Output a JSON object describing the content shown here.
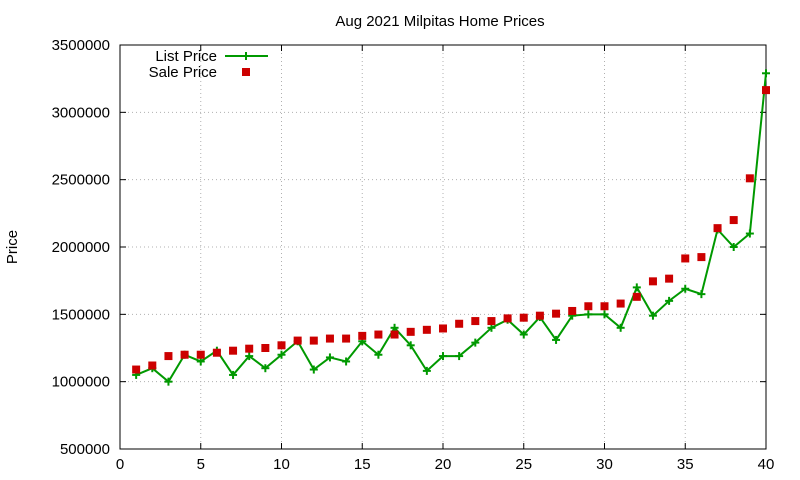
{
  "chart_data": {
    "type": "line",
    "title": "Aug 2021 Milpitas Home Prices",
    "xlabel": "",
    "ylabel": "Price",
    "xlim": [
      0,
      40
    ],
    "ylim": [
      500000,
      3500000
    ],
    "xticks": [
      0,
      5,
      10,
      15,
      20,
      25,
      30,
      35,
      40
    ],
    "yticks": [
      500000,
      1000000,
      1500000,
      2000000,
      2500000,
      3000000,
      3500000
    ],
    "grid": true,
    "legend_position": "top-left",
    "x": [
      1,
      2,
      3,
      4,
      5,
      6,
      7,
      8,
      9,
      10,
      11,
      12,
      13,
      14,
      15,
      16,
      17,
      18,
      19,
      20,
      21,
      22,
      23,
      24,
      25,
      26,
      27,
      28,
      29,
      30,
      31,
      32,
      33,
      34,
      35,
      36,
      37,
      38,
      39,
      40
    ],
    "series": [
      {
        "name": "List Price",
        "style": "linespoints",
        "marker": "plus",
        "color": "#009900",
        "values": [
          1050000,
          1100000,
          1000000,
          1200000,
          1150000,
          1230000,
          1050000,
          1190000,
          1100000,
          1200000,
          1300000,
          1090000,
          1180000,
          1150000,
          1300000,
          1200000,
          1400000,
          1270000,
          1080000,
          1190000,
          1190000,
          1290000,
          1400000,
          1460000,
          1350000,
          1480000,
          1310000,
          1490000,
          1500000,
          1500000,
          1400000,
          1700000,
          1490000,
          1600000,
          1690000,
          1650000,
          2130000,
          2000000,
          2100000,
          3290000
        ]
      },
      {
        "name": "Sale Price",
        "style": "points",
        "marker": "square",
        "color": "#cc0000",
        "values": [
          1090000,
          1120000,
          1190000,
          1200000,
          1200000,
          1215000,
          1230000,
          1245000,
          1250000,
          1270000,
          1305000,
          1305000,
          1320000,
          1320000,
          1340000,
          1350000,
          1350000,
          1370000,
          1385000,
          1395000,
          1430000,
          1450000,
          1450000,
          1470000,
          1475000,
          1490000,
          1505000,
          1525000,
          1560000,
          1560000,
          1580000,
          1630000,
          1745000,
          1765000,
          1915000,
          1925000,
          2140000,
          2200000,
          2510000,
          3165000
        ]
      }
    ]
  }
}
